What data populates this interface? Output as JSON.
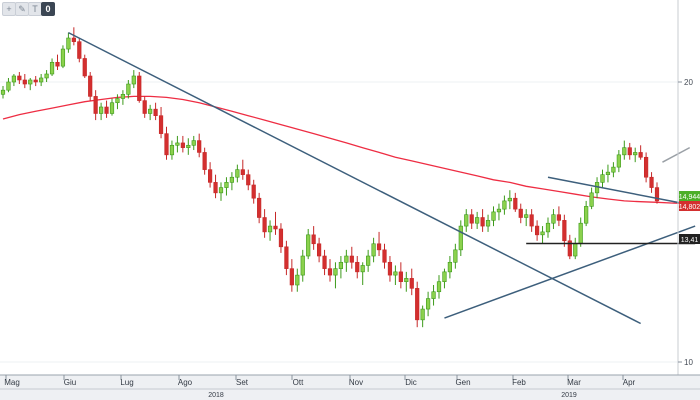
{
  "toolbar": {
    "buttons": [
      {
        "icon": "crosshair-icon",
        "glyph": "+"
      },
      {
        "icon": "pencil-icon",
        "glyph": "✎"
      },
      {
        "icon": "text-icon",
        "glyph": "T"
      },
      {
        "icon": "count-icon",
        "glyph": "0"
      }
    ]
  },
  "chart_data": {
    "type": "candlestick",
    "title": "",
    "xlabel": "",
    "ylabel": "",
    "x_ticks": [
      "Mag",
      "Giu",
      "Lug",
      "Ago",
      "Set",
      "Ott",
      "Nov",
      "Dic",
      "Gen",
      "Feb",
      "Mar",
      "Apr"
    ],
    "year_labels": [
      "2018",
      "2019"
    ],
    "y_ticks": [
      20,
      10
    ],
    "ylim": [
      9.85,
      23.1
    ],
    "scale": "log",
    "price_tags": [
      {
        "label": "14,944",
        "value": 14.94,
        "color": "#4caf28"
      },
      {
        "label": "14,802",
        "value": 14.8,
        "color": "#d32f2f"
      },
      {
        "label": "13,41",
        "value": 13.41,
        "color": "#222222"
      }
    ],
    "ohlc": [
      [
        19.4,
        19.8,
        19.2,
        19.6
      ],
      [
        19.6,
        20.2,
        19.5,
        20.0
      ],
      [
        20.0,
        20.4,
        19.8,
        20.3
      ],
      [
        20.3,
        20.5,
        19.9,
        20.1
      ],
      [
        20.1,
        20.4,
        19.7,
        19.9
      ],
      [
        19.9,
        20.2,
        19.6,
        20.1
      ],
      [
        20.1,
        20.3,
        19.8,
        20.0
      ],
      [
        20.0,
        20.4,
        19.8,
        20.2
      ],
      [
        20.2,
        20.6,
        20.0,
        20.4
      ],
      [
        20.4,
        21.2,
        20.3,
        21.0
      ],
      [
        21.0,
        21.4,
        20.6,
        20.8
      ],
      [
        20.8,
        21.9,
        20.7,
        21.7
      ],
      [
        21.7,
        22.6,
        21.5,
        22.3
      ],
      [
        22.3,
        22.9,
        21.9,
        22.1
      ],
      [
        22.1,
        22.3,
        21.0,
        21.2
      ],
      [
        21.2,
        21.4,
        20.2,
        20.3
      ],
      [
        20.3,
        20.5,
        19.1,
        19.3
      ],
      [
        19.3,
        19.6,
        18.2,
        18.5
      ],
      [
        18.5,
        19.0,
        18.2,
        18.8
      ],
      [
        18.8,
        19.1,
        18.3,
        18.5
      ],
      [
        18.5,
        19.2,
        18.4,
        19.0
      ],
      [
        19.0,
        19.4,
        18.7,
        19.2
      ],
      [
        19.2,
        19.6,
        18.9,
        19.4
      ],
      [
        19.4,
        20.1,
        19.2,
        19.9
      ],
      [
        19.9,
        20.6,
        19.7,
        20.3
      ],
      [
        20.3,
        20.5,
        19.0,
        19.1
      ],
      [
        19.1,
        19.3,
        18.3,
        18.5
      ],
      [
        18.5,
        18.9,
        18.2,
        18.7
      ],
      [
        18.7,
        19.0,
        18.2,
        18.4
      ],
      [
        18.4,
        18.8,
        17.4,
        17.6
      ],
      [
        17.6,
        17.9,
        16.5,
        16.7
      ],
      [
        16.7,
        17.3,
        16.5,
        17.1
      ],
      [
        17.1,
        17.5,
        16.8,
        17.2
      ],
      [
        17.2,
        17.5,
        16.8,
        17.0
      ],
      [
        17.0,
        17.4,
        16.7,
        17.1
      ],
      [
        17.1,
        17.5,
        16.9,
        17.3
      ],
      [
        17.3,
        17.6,
        16.6,
        16.8
      ],
      [
        16.8,
        17.0,
        15.9,
        16.1
      ],
      [
        16.1,
        16.4,
        15.4,
        15.6
      ],
      [
        15.6,
        15.9,
        15.0,
        15.2
      ],
      [
        15.2,
        15.6,
        14.9,
        15.4
      ],
      [
        15.4,
        15.8,
        15.1,
        15.6
      ],
      [
        15.6,
        16.0,
        15.3,
        15.8
      ],
      [
        15.8,
        16.3,
        15.6,
        16.1
      ],
      [
        16.1,
        16.5,
        15.7,
        15.9
      ],
      [
        15.9,
        16.1,
        15.3,
        15.5
      ],
      [
        15.5,
        15.7,
        14.8,
        15.0
      ],
      [
        15.0,
        15.2,
        14.1,
        14.3
      ],
      [
        14.3,
        14.6,
        13.6,
        13.8
      ],
      [
        13.8,
        14.2,
        13.5,
        14.0
      ],
      [
        14.0,
        14.5,
        13.7,
        13.9
      ],
      [
        13.9,
        14.1,
        13.1,
        13.3
      ],
      [
        13.3,
        13.5,
        12.4,
        12.6
      ],
      [
        12.6,
        12.9,
        11.9,
        12.1
      ],
      [
        12.1,
        12.6,
        11.9,
        12.4
      ],
      [
        12.4,
        13.2,
        12.2,
        13.0
      ],
      [
        13.0,
        13.9,
        12.9,
        13.7
      ],
      [
        13.7,
        14.0,
        13.2,
        13.4
      ],
      [
        13.4,
        13.6,
        12.8,
        13.0
      ],
      [
        13.0,
        13.2,
        12.4,
        12.6
      ],
      [
        12.6,
        12.9,
        12.2,
        12.4
      ],
      [
        12.4,
        12.8,
        12.0,
        12.6
      ],
      [
        12.6,
        13.0,
        12.3,
        12.8
      ],
      [
        12.8,
        13.2,
        12.5,
        13.0
      ],
      [
        13.0,
        13.3,
        12.6,
        12.8
      ],
      [
        12.8,
        13.0,
        12.3,
        12.5
      ],
      [
        12.5,
        12.8,
        12.1,
        12.7
      ],
      [
        12.7,
        13.2,
        12.5,
        13.0
      ],
      [
        13.0,
        13.6,
        12.8,
        13.4
      ],
      [
        13.4,
        13.8,
        13.0,
        13.2
      ],
      [
        13.2,
        13.4,
        12.6,
        12.8
      ],
      [
        12.8,
        13.0,
        12.2,
        12.4
      ],
      [
        12.4,
        12.7,
        12.1,
        12.5
      ],
      [
        12.5,
        12.8,
        12.0,
        12.2
      ],
      [
        12.2,
        12.5,
        11.9,
        12.3
      ],
      [
        12.3,
        12.6,
        11.8,
        12.0
      ],
      [
        12.0,
        12.2,
        10.9,
        11.1
      ],
      [
        11.1,
        11.5,
        10.9,
        11.4
      ],
      [
        11.4,
        11.9,
        11.2,
        11.7
      ],
      [
        11.7,
        12.1,
        11.5,
        11.9
      ],
      [
        11.9,
        12.4,
        11.7,
        12.2
      ],
      [
        12.2,
        12.6,
        12.0,
        12.5
      ],
      [
        12.5,
        13.0,
        12.3,
        12.8
      ],
      [
        12.8,
        13.4,
        12.6,
        13.2
      ],
      [
        13.2,
        14.2,
        13.0,
        14.0
      ],
      [
        14.0,
        14.6,
        13.8,
        14.4
      ],
      [
        14.4,
        14.6,
        13.9,
        14.1
      ],
      [
        14.1,
        14.5,
        13.9,
        14.3
      ],
      [
        14.3,
        14.6,
        13.8,
        14.0
      ],
      [
        14.0,
        14.4,
        13.8,
        14.2
      ],
      [
        14.2,
        14.7,
        14.0,
        14.5
      ],
      [
        14.5,
        14.8,
        14.2,
        14.6
      ],
      [
        14.6,
        15.1,
        14.4,
        14.9
      ],
      [
        14.9,
        15.3,
        14.6,
        15.0
      ],
      [
        15.0,
        15.2,
        14.5,
        14.6
      ],
      [
        14.6,
        14.8,
        14.1,
        14.3
      ],
      [
        14.3,
        14.6,
        14.0,
        14.4
      ],
      [
        14.4,
        14.6,
        13.8,
        14.0
      ],
      [
        14.0,
        14.2,
        13.5,
        13.7
      ],
      [
        13.7,
        14.0,
        13.4,
        13.8
      ],
      [
        13.8,
        14.3,
        13.6,
        14.1
      ],
      [
        14.1,
        14.6,
        13.9,
        14.4
      ],
      [
        14.4,
        14.7,
        14.0,
        14.2
      ],
      [
        14.2,
        14.4,
        13.3,
        13.5
      ],
      [
        13.5,
        13.7,
        12.9,
        13.0
      ],
      [
        13.0,
        13.6,
        12.9,
        13.4
      ],
      [
        13.4,
        14.3,
        13.3,
        14.1
      ],
      [
        14.1,
        14.9,
        14.0,
        14.7
      ],
      [
        14.7,
        15.4,
        14.6,
        15.2
      ],
      [
        15.2,
        15.8,
        15.0,
        15.6
      ],
      [
        15.6,
        16.1,
        15.4,
        15.9
      ],
      [
        15.9,
        16.3,
        15.6,
        16.0
      ],
      [
        16.0,
        16.4,
        15.8,
        16.2
      ],
      [
        16.2,
        16.9,
        16.0,
        16.7
      ],
      [
        16.7,
        17.3,
        16.5,
        17.0
      ],
      [
        17.0,
        17.2,
        16.5,
        16.7
      ],
      [
        16.7,
        17.0,
        16.4,
        16.8
      ],
      [
        16.8,
        17.1,
        16.5,
        16.6
      ],
      [
        16.6,
        16.8,
        15.6,
        15.8
      ],
      [
        15.8,
        16.0,
        15.2,
        15.4
      ],
      [
        15.4,
        15.6,
        14.8,
        14.9
      ]
    ],
    "series": [
      {
        "type": "line",
        "color": "#ee2d43",
        "values": [
          18.25,
          18.45,
          18.6,
          18.75,
          18.9,
          19.05,
          19.15,
          19.25,
          19.3,
          19.3,
          19.25,
          19.15,
          19.0,
          18.8,
          18.6,
          18.4,
          18.2,
          18.0,
          17.8,
          17.6,
          17.4,
          17.2,
          17.0,
          16.8,
          16.6,
          16.45,
          16.3,
          16.15,
          16.0,
          15.85,
          15.7,
          15.6,
          15.45,
          15.35,
          15.25,
          15.15,
          15.05,
          14.97,
          14.9,
          14.87,
          14.85,
          14.82,
          14.8
        ]
      },
      {
        "type": "trendline",
        "color": "#3d5f7c",
        "points": [
          [
            12,
            22.6
          ],
          [
            117,
            11.0
          ]
        ]
      },
      {
        "type": "trendline",
        "color": "#3d5f7c",
        "points": [
          [
            81,
            11.15
          ],
          [
            127,
            14.0
          ]
        ]
      },
      {
        "type": "trendline",
        "color": "#3d5f7c",
        "points": [
          [
            100,
            15.8
          ],
          [
            125,
            14.8
          ]
        ]
      },
      {
        "type": "trendline",
        "color": "#222222",
        "points": [
          [
            96,
            13.41
          ],
          [
            127,
            13.41
          ]
        ]
      },
      {
        "type": "trendline",
        "color": "#9aa0a6",
        "points": [
          [
            121,
            16.4
          ],
          [
            126,
            17.0
          ]
        ]
      }
    ]
  }
}
